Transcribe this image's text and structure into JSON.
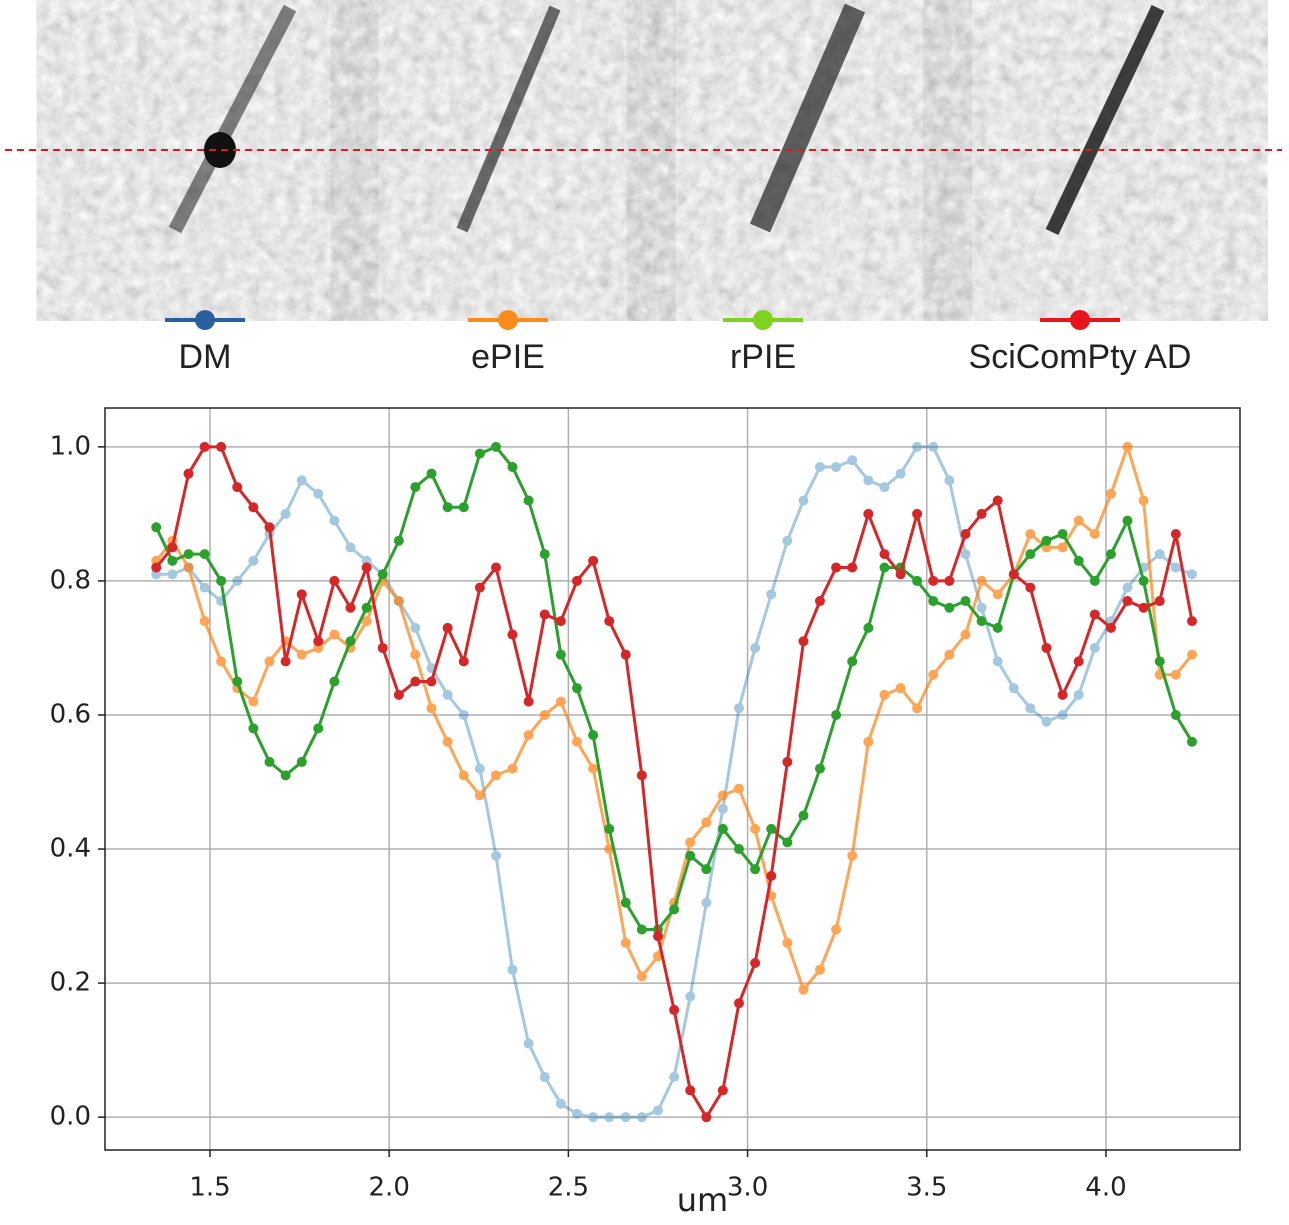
{
  "chart_data": {
    "type": "line",
    "xlabel": "um",
    "grid": true,
    "legend": "top",
    "x": [
      1.35,
      1.395,
      1.44,
      1.485,
      1.531,
      1.576,
      1.621,
      1.666,
      1.711,
      1.756,
      1.802,
      1.847,
      1.892,
      1.937,
      1.982,
      2.027,
      2.073,
      2.118,
      2.163,
      2.208,
      2.253,
      2.298,
      2.344,
      2.389,
      2.434,
      2.479,
      2.524,
      2.569,
      2.614,
      2.66,
      2.705,
      2.75,
      2.795,
      2.84,
      2.885,
      2.931,
      2.976,
      3.021,
      3.066,
      3.111,
      3.156,
      3.202,
      3.247,
      3.292,
      3.337,
      3.382,
      3.427,
      3.473,
      3.518,
      3.563,
      3.608,
      3.653,
      3.698,
      3.743,
      3.789,
      3.834,
      3.879,
      3.924,
      3.969,
      4.014,
      4.06,
      4.105,
      4.15,
      4.195,
      4.24
    ],
    "xlim": [
      1.207,
      4.374
    ],
    "ylim": [
      -0.049,
      1.058
    ],
    "xticks": [
      1.5,
      {
        "value": 2,
        "label": "2.0"
      },
      2.5,
      {
        "value": 3,
        "label": "3.0"
      },
      3.5,
      {
        "value": 4,
        "label": "4.0"
      }
    ],
    "yticks": [
      {
        "value": 0,
        "label": "0.0"
      },
      0.2,
      0.4,
      0.6,
      0.8,
      {
        "value": 1,
        "label": "1.0"
      }
    ],
    "series": [
      {
        "name": "DM",
        "color": "#1f77b4",
        "alpha": 0.4,
        "legend_color": "#2a5fa0",
        "values": [
          0.81,
          0.81,
          0.82,
          0.79,
          0.77,
          0.8,
          0.83,
          0.87,
          0.9,
          0.95,
          0.93,
          0.89,
          0.85,
          0.83,
          0.81,
          0.77,
          0.73,
          0.67,
          0.63,
          0.6,
          0.52,
          0.39,
          0.22,
          0.11,
          0.06,
          0.02,
          0.005,
          0,
          0,
          0,
          0,
          0.01,
          0.06,
          0.18,
          0.32,
          0.46,
          0.61,
          0.7,
          0.78,
          0.86,
          0.92,
          0.97,
          0.97,
          0.98,
          0.95,
          0.94,
          0.96,
          1.0,
          1.0,
          0.95,
          0.84,
          0.76,
          0.68,
          0.64,
          0.61,
          0.59,
          0.6,
          0.63,
          0.7,
          0.74,
          0.79,
          0.82,
          0.84,
          0.82,
          0.81
        ]
      },
      {
        "name": "ePIE",
        "color": "#ff7f0e",
        "alpha": 0.7,
        "legend_color": "#ff8c1a",
        "values": [
          0.83,
          0.86,
          0.82,
          0.74,
          0.68,
          0.64,
          0.62,
          0.68,
          0.71,
          0.69,
          0.7,
          0.72,
          0.7,
          0.74,
          0.8,
          0.77,
          0.69,
          0.61,
          0.56,
          0.51,
          0.48,
          0.51,
          0.52,
          0.57,
          0.6,
          0.62,
          0.56,
          0.52,
          0.4,
          0.26,
          0.21,
          0.24,
          0.32,
          0.41,
          0.44,
          0.48,
          0.49,
          0.43,
          0.33,
          0.26,
          0.19,
          0.22,
          0.28,
          0.39,
          0.56,
          0.63,
          0.64,
          0.61,
          0.66,
          0.69,
          0.72,
          0.8,
          0.78,
          0.81,
          0.87,
          0.85,
          0.85,
          0.89,
          0.87,
          0.93,
          1.0,
          0.92,
          0.66,
          0.66,
          0.69
        ]
      },
      {
        "name": "rPIE",
        "color": "#2ca02c",
        "alpha": 1,
        "legend_color": "#7ed321",
        "values": [
          0.88,
          0.83,
          0.84,
          0.84,
          0.8,
          0.65,
          0.58,
          0.53,
          0.51,
          0.53,
          0.58,
          0.65,
          0.71,
          0.76,
          0.81,
          0.86,
          0.94,
          0.96,
          0.91,
          0.91,
          0.99,
          1.0,
          0.97,
          0.92,
          0.84,
          0.69,
          0.64,
          0.57,
          0.43,
          0.32,
          0.28,
          0.28,
          0.31,
          0.39,
          0.37,
          0.43,
          0.4,
          0.37,
          0.43,
          0.41,
          0.45,
          0.52,
          0.6,
          0.68,
          0.73,
          0.82,
          0.82,
          0.8,
          0.77,
          0.76,
          0.77,
          0.74,
          0.73,
          0.81,
          0.84,
          0.86,
          0.87,
          0.83,
          0.8,
          0.84,
          0.89,
          0.8,
          0.68,
          0.6,
          0.56
        ]
      },
      {
        "name": "SciComPty AD",
        "color": "#d62728",
        "alpha": 1,
        "legend_color": "#e8141b",
        "values": [
          0.82,
          0.85,
          0.96,
          1.0,
          1.0,
          0.94,
          0.91,
          0.88,
          0.68,
          0.78,
          0.71,
          0.8,
          0.76,
          0.82,
          0.7,
          0.63,
          0.65,
          0.65,
          0.73,
          0.68,
          0.79,
          0.82,
          0.72,
          0.62,
          0.75,
          0.74,
          0.8,
          0.83,
          0.74,
          0.69,
          0.51,
          0.27,
          0.16,
          0.04,
          0.0,
          0.04,
          0.17,
          0.23,
          0.36,
          0.53,
          0.71,
          0.77,
          0.82,
          0.82,
          0.9,
          0.84,
          0.81,
          0.9,
          0.8,
          0.8,
          0.87,
          0.9,
          0.92,
          0.81,
          0.79,
          0.7,
          0.63,
          0.68,
          0.75,
          0.73,
          0.77,
          0.76,
          0.77,
          0.87,
          0.74
        ]
      }
    ]
  }
}
